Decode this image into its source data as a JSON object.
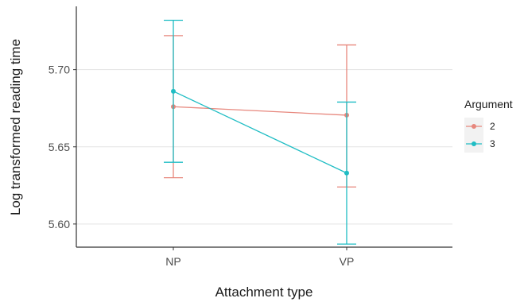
{
  "chart_data": {
    "type": "line",
    "xlabel": "Attachment type",
    "ylabel": "Log transformed reading time",
    "categories": [
      "NP",
      "VP"
    ],
    "ylim": [
      5.585,
      5.741
    ],
    "yticks": [
      5.6,
      5.65,
      5.7
    ],
    "ytick_labels": [
      "5.60",
      "5.65",
      "5.70"
    ],
    "grid": true,
    "legend": {
      "title": "Argument",
      "position": "right"
    },
    "series": [
      {
        "name": "2",
        "color": "#E7877D",
        "values": [
          5.676,
          5.6705
        ],
        "error_low": [
          5.63,
          5.624
        ],
        "error_high": [
          5.722,
          5.716
        ]
      },
      {
        "name": "3",
        "color": "#1FBDC4",
        "values": [
          5.686,
          5.633
        ],
        "error_low": [
          5.64,
          5.587
        ],
        "error_high": [
          5.732,
          5.679
        ]
      }
    ]
  }
}
